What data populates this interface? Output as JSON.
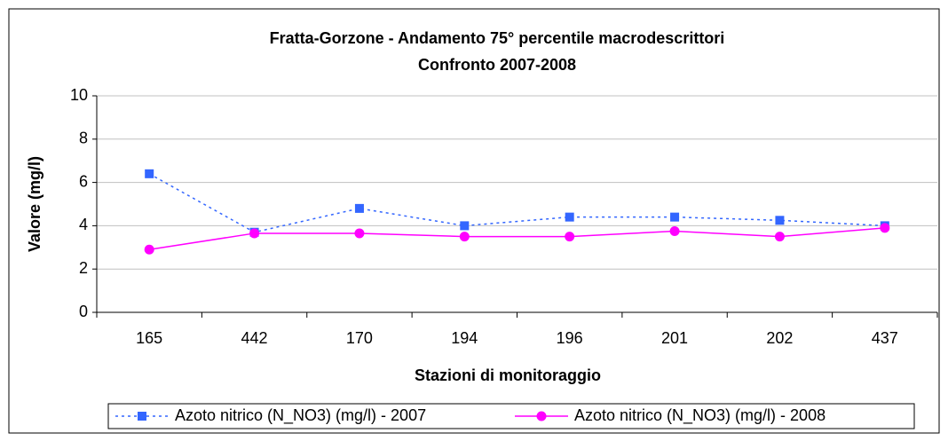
{
  "chart_data": {
    "type": "line",
    "title": "Fratta-Gorzone - Andamento 75° percentile macrodescrittori",
    "subtitle": "Confronto 2007-2008",
    "x_label": "Stazioni di monitoraggio",
    "y_label": "Valore (mg/l)",
    "categories": [
      "165",
      "442",
      "170",
      "194",
      "196",
      "201",
      "202",
      "437"
    ],
    "series": [
      {
        "name": "Azoto nitrico (N_NO3) (mg/l) - 2007",
        "color": "#3366ff",
        "linestyle": "dotted",
        "marker": "square",
        "values": [
          6.4,
          3.7,
          4.8,
          4.0,
          4.4,
          4.4,
          4.25,
          4.0
        ]
      },
      {
        "name": "Azoto nitrico (N_NO3) (mg/l) - 2008",
        "color": "#ff00ff",
        "linestyle": "solid",
        "marker": "circle",
        "values": [
          2.9,
          3.65,
          3.65,
          3.5,
          3.5,
          3.75,
          3.5,
          3.9
        ]
      }
    ],
    "ylim": [
      0,
      10
    ],
    "yticks": [
      0,
      2,
      4,
      6,
      8,
      10
    ],
    "grid": true,
    "legend": "bottom"
  }
}
